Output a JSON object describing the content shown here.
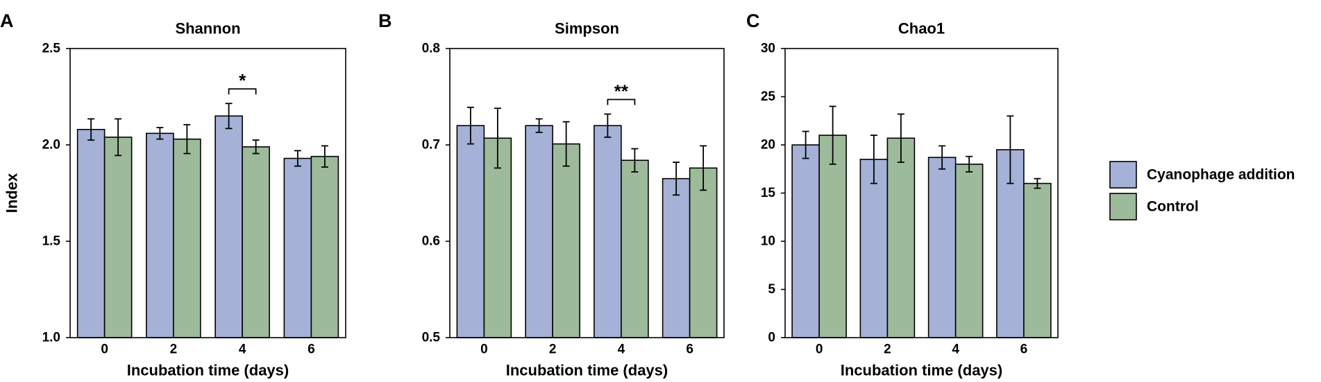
{
  "legend": {
    "position": "right",
    "items": [
      {
        "label": "Cyanophage addition",
        "color": "#a5b1d6"
      },
      {
        "label": "Control",
        "color": "#9dbb9a"
      }
    ]
  },
  "chart_data": [
    {
      "panel": "A",
      "type": "bar",
      "title": "Shannon",
      "xlabel": "Incubation time (days)",
      "ylabel": "Index",
      "categories": [
        "0",
        "2",
        "4",
        "6"
      ],
      "ylim": [
        1.0,
        2.5
      ],
      "yticks": [
        1.0,
        1.5,
        2.0,
        2.5
      ],
      "ytick_labels": [
        "1.0",
        "1.5",
        "2.0",
        "2.5"
      ],
      "series": [
        {
          "name": "Cyanophage addition",
          "values": [
            2.08,
            2.06,
            2.15,
            1.93
          ],
          "errors": [
            0.055,
            0.03,
            0.065,
            0.04
          ]
        },
        {
          "name": "Control",
          "values": [
            2.04,
            2.03,
            1.99,
            1.94
          ],
          "errors": [
            0.095,
            0.075,
            0.035,
            0.055
          ]
        }
      ],
      "annotations": [
        {
          "category": "4",
          "text": "*"
        }
      ]
    },
    {
      "panel": "B",
      "type": "bar",
      "title": "Simpson",
      "xlabel": "Incubation time (days)",
      "ylabel": "",
      "categories": [
        "0",
        "2",
        "4",
        "6"
      ],
      "ylim": [
        0.5,
        0.8
      ],
      "yticks": [
        0.5,
        0.6,
        0.7,
        0.8
      ],
      "ytick_labels": [
        "0.5",
        "0.6",
        "0.7",
        "0.8"
      ],
      "series": [
        {
          "name": "Cyanophage addition",
          "values": [
            0.72,
            0.72,
            0.72,
            0.665
          ],
          "errors": [
            0.019,
            0.007,
            0.012,
            0.017
          ]
        },
        {
          "name": "Control",
          "values": [
            0.707,
            0.701,
            0.684,
            0.676
          ],
          "errors": [
            0.031,
            0.023,
            0.012,
            0.023
          ]
        }
      ],
      "annotations": [
        {
          "category": "4",
          "text": "**"
        }
      ]
    },
    {
      "panel": "C",
      "type": "bar",
      "title": "Chao1",
      "xlabel": "Incubation time (days)",
      "ylabel": "",
      "categories": [
        "0",
        "2",
        "4",
        "6"
      ],
      "ylim": [
        0,
        30
      ],
      "yticks": [
        0,
        5,
        10,
        15,
        20,
        25,
        30
      ],
      "ytick_labels": [
        "0",
        "5",
        "10",
        "15",
        "20",
        "25",
        "30"
      ],
      "series": [
        {
          "name": "Cyanophage addition",
          "values": [
            20.0,
            18.5,
            18.7,
            19.5
          ],
          "errors": [
            1.4,
            2.5,
            1.2,
            3.5
          ]
        },
        {
          "name": "Control",
          "values": [
            21.0,
            20.7,
            18.0,
            16.0
          ],
          "errors": [
            3.0,
            2.5,
            0.8,
            0.5
          ]
        }
      ],
      "annotations": []
    }
  ]
}
